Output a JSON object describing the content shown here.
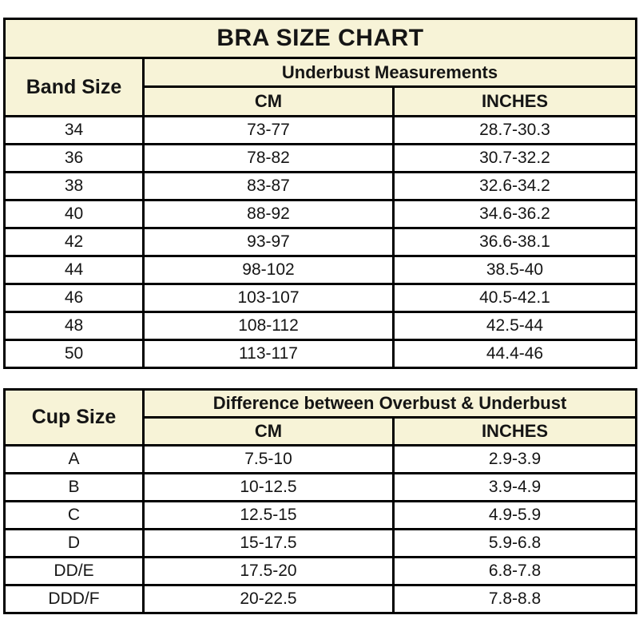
{
  "colors": {
    "header_bg": "#f7f3d7",
    "row_bg": "#ffffff",
    "border": "#000000",
    "text": "#151515"
  },
  "chart_data": [
    {
      "type": "table",
      "title": "BRA SIZE CHART",
      "corner_header": "Band Size",
      "group_header": "Underbust Measurements",
      "columns": [
        "CM",
        "INCHES"
      ],
      "rows": [
        [
          "34",
          "73-77",
          "28.7-30.3"
        ],
        [
          "36",
          "78-82",
          "30.7-32.2"
        ],
        [
          "38",
          "83-87",
          "32.6-34.2"
        ],
        [
          "40",
          "88-92",
          "34.6-36.2"
        ],
        [
          "42",
          "93-97",
          "36.6-38.1"
        ],
        [
          "44",
          "98-102",
          "38.5-40"
        ],
        [
          "46",
          "103-107",
          "40.5-42.1"
        ],
        [
          "48",
          "108-112",
          "42.5-44"
        ],
        [
          "50",
          "113-117",
          "44.4-46"
        ]
      ]
    },
    {
      "type": "table",
      "corner_header": "Cup Size",
      "group_header": "Difference between Overbust & Underbust",
      "columns": [
        "CM",
        "INCHES"
      ],
      "rows": [
        [
          "A",
          "7.5-10",
          "2.9-3.9"
        ],
        [
          "B",
          "10-12.5",
          "3.9-4.9"
        ],
        [
          "C",
          "12.5-15",
          "4.9-5.9"
        ],
        [
          "D",
          "15-17.5",
          "5.9-6.8"
        ],
        [
          "DD/E",
          "17.5-20",
          "6.8-7.8"
        ],
        [
          "DDD/F",
          "20-22.5",
          "7.8-8.8"
        ]
      ]
    }
  ]
}
